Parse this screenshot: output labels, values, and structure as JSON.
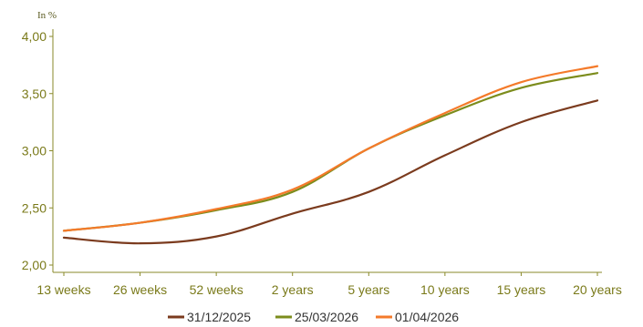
{
  "chart_data": {
    "type": "line",
    "unit_label": "In %",
    "categories": [
      "13 weeks",
      "26 weeks",
      "52 weeks",
      "2 years",
      "5 years",
      "10 years",
      "15 years",
      "20 years"
    ],
    "ylim": [
      2.0,
      4.0
    ],
    "yticks": [
      "2,00",
      "2,50",
      "3,00",
      "3,50",
      "4,00"
    ],
    "ytick_values": [
      2.0,
      2.5,
      3.0,
      3.5,
      4.0
    ],
    "grid": false,
    "legend_position": "bottom",
    "series": [
      {
        "name": "31/12/2025",
        "color": "#7b3b1e",
        "values": [
          2.24,
          2.19,
          2.25,
          2.45,
          2.64,
          2.96,
          3.25,
          3.44
        ]
      },
      {
        "name": "25/03/2026",
        "color": "#7c8c1c",
        "values": [
          2.3,
          2.37,
          2.48,
          2.64,
          3.02,
          3.31,
          3.55,
          3.68
        ]
      },
      {
        "name": "01/04/2026",
        "color": "#f47a2a",
        "values": [
          2.3,
          2.37,
          2.49,
          2.66,
          3.02,
          3.33,
          3.6,
          3.74
        ]
      }
    ]
  }
}
